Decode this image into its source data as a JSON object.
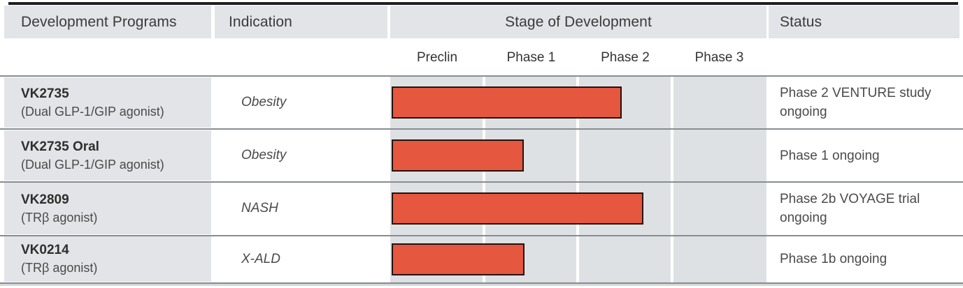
{
  "table": {
    "columns": {
      "programs": "Development Programs",
      "indication": "Indication",
      "stage": "Stage of Development",
      "status": "Status"
    },
    "phases": [
      "Preclin",
      "Phase 1",
      "Phase 2",
      "Phase 3"
    ],
    "rows": [
      {
        "program": "VK2735",
        "mechanism": "(Dual GLP-1/GIP agonist)",
        "indication": "Obesity",
        "stage_progress": 2.46,
        "status": "Phase 2 VENTURE study ongoing"
      },
      {
        "program": "VK2735 Oral",
        "mechanism": "(Dual GLP-1/GIP agonist)",
        "indication": "Obesity",
        "stage_progress": 1.42,
        "status": "Phase 1 ongoing"
      },
      {
        "program": "VK2809",
        "mechanism": "(TRβ agonist)",
        "indication": "NASH",
        "stage_progress": 2.69,
        "status": "Phase 2b VOYAGE trial ongoing"
      },
      {
        "program": "VK0214",
        "mechanism": "(TRβ agonist)",
        "indication": "X-ALD",
        "stage_progress": 1.43,
        "status": "Phase 1b ongoing"
      }
    ]
  },
  "colors": {
    "bar_fill": "#e5573e",
    "bar_border": "#23130d",
    "header_bg": "#e2e4e7",
    "stage_bg": "#dee1e4",
    "separator": "#888c91",
    "top_border": "#1f1f1f"
  },
  "chart_data": {
    "type": "bar",
    "orientation": "horizontal",
    "title": "Stage of Development",
    "categories": [
      "VK2735",
      "VK2735 Oral",
      "VK2809",
      "VK0214"
    ],
    "values": [
      2.46,
      1.42,
      2.69,
      1.43
    ],
    "value_meaning": "phases reached on a 0-4 scale (1=end of Preclin, 2=end of Phase 1, 3=end of Phase 2, 4=end of Phase 3)",
    "x_ticks": [
      "Preclin",
      "Phase 1",
      "Phase 2",
      "Phase 3"
    ],
    "xlim": [
      0,
      4
    ],
    "grid": "white vertical dividers between phase columns",
    "legend": "none",
    "bar_color": "#e5573e"
  }
}
